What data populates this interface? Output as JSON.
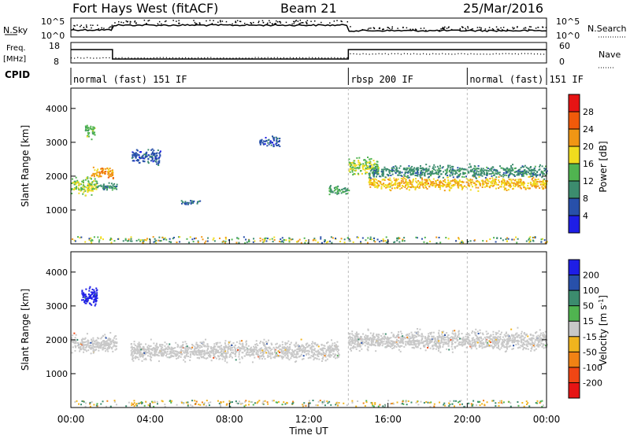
{
  "header": {
    "title": "Fort Hays West (fitACF)",
    "beam": "Beam 21",
    "date": "25/Mar/2016"
  },
  "noise_panel": {
    "left_label": "N.Sky",
    "right_label": "N.Search",
    "left_ticks": [
      "10^5",
      "10^0"
    ],
    "right_ticks": [
      "10^5",
      "10^0"
    ]
  },
  "freq_panel": {
    "left_label": "Freq. [MHz]",
    "right_label": "Nave",
    "left_ticks": [
      "18",
      "8"
    ],
    "right_ticks": [
      "60",
      "0"
    ]
  },
  "cpid": {
    "label": "CPID",
    "segments": [
      {
        "text": "normal (fast) 151 IF",
        "start_hour": 0,
        "end_hour": 14
      },
      {
        "text": "rbsp 200 IF",
        "start_hour": 14,
        "end_hour": 20
      },
      {
        "text": "normal (fast) 151 IF",
        "start_hour": 20,
        "end_hour": 24
      }
    ]
  },
  "chart_data": [
    {
      "type": "heatmap",
      "title": "",
      "xlabel": "Time UT",
      "ylabel": "Slant Range [km]",
      "xlim": [
        0,
        24
      ],
      "ylim": [
        0,
        4600
      ],
      "x_ticks": [
        "00:00",
        "04:00",
        "08:00",
        "12:00",
        "16:00",
        "20:00",
        "00:00"
      ],
      "y_ticks": [
        1000,
        2000,
        3000,
        4000
      ],
      "colorbar": {
        "label": "Power [dB]",
        "ticks": [
          4,
          8,
          12,
          16,
          20,
          24,
          28
        ],
        "colors": [
          "#1e1ee6",
          "#2850aa",
          "#3c8c6e",
          "#50b450",
          "#f0dc1e",
          "#f09614",
          "#f05a0a",
          "#e61414"
        ]
      },
      "series": [
        {
          "x_start": 0.0,
          "x_end": 1.3,
          "y_center": 1750,
          "y_spread": 350,
          "value": 16
        },
        {
          "x_start": 0.7,
          "x_end": 1.2,
          "y_center": 3350,
          "y_spread": 300,
          "value": 14
        },
        {
          "x_start": 1.0,
          "x_end": 2.1,
          "y_center": 2100,
          "y_spread": 250,
          "value": 22
        },
        {
          "x_start": 1.2,
          "x_end": 2.3,
          "y_center": 1700,
          "y_spread": 150,
          "value": 10
        },
        {
          "x_start": 3.0,
          "x_end": 4.5,
          "y_center": 2600,
          "y_spread": 300,
          "value": 6
        },
        {
          "x_start": 5.5,
          "x_end": 6.5,
          "y_center": 1250,
          "y_spread": 100,
          "value": 8
        },
        {
          "x_start": 9.5,
          "x_end": 10.5,
          "y_center": 3050,
          "y_spread": 200,
          "value": 6
        },
        {
          "x_start": 13.0,
          "x_end": 14.0,
          "y_center": 1600,
          "y_spread": 200,
          "value": 12
        },
        {
          "x_start": 14.0,
          "x_end": 15.5,
          "y_center": 2300,
          "y_spread": 350,
          "value": 16
        },
        {
          "x_start": 15.0,
          "x_end": 24.0,
          "y_center": 1800,
          "y_spread": 250,
          "value": 20
        },
        {
          "x_start": 15.0,
          "x_end": 24.0,
          "y_center": 2150,
          "y_spread": 250,
          "value": 10
        }
      ]
    },
    {
      "type": "heatmap",
      "title": "",
      "xlabel": "Time UT",
      "ylabel": "Slant Range [km]",
      "xlim": [
        0,
        24
      ],
      "ylim": [
        0,
        4600
      ],
      "x_ticks": [
        "00:00",
        "04:00",
        "08:00",
        "12:00",
        "16:00",
        "20:00",
        "00:00"
      ],
      "y_ticks": [
        1000,
        2000,
        3000,
        4000
      ],
      "colorbar": {
        "label": "Velocity [m s^-1]",
        "ticks": [
          "200",
          "100",
          "50",
          "15",
          "-15",
          "-50",
          "-100",
          "-200"
        ],
        "colors": [
          "#1e1ee6",
          "#2850aa",
          "#3c8c6e",
          "#50b450",
          "#c8c8c8",
          "#f0b41e",
          "#f08214",
          "#f04614",
          "#e61414"
        ]
      },
      "series": [
        {
          "x_start": 0.5,
          "x_end": 1.3,
          "y_center": 3300,
          "y_spread": 400,
          "value": 250
        },
        {
          "x_start": 0.0,
          "x_end": 2.3,
          "y_center": 1900,
          "y_spread": 350,
          "value": 0
        },
        {
          "x_start": 3.0,
          "x_end": 13.5,
          "y_center": 1700,
          "y_spread": 400,
          "value": 0
        },
        {
          "x_start": 14.0,
          "x_end": 24.0,
          "y_center": 2000,
          "y_spread": 400,
          "value": 0
        }
      ]
    }
  ]
}
